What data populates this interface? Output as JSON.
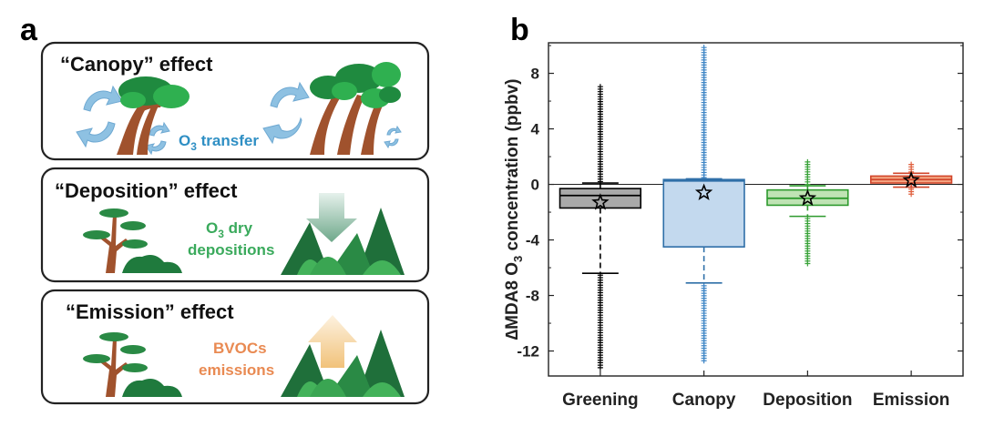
{
  "panel_a": {
    "letter": "a",
    "boxes": [
      {
        "title": "“Canopy” effect",
        "label_main": "O",
        "label_sub": "3",
        "label_rest": " transfer",
        "label_color": "#2f8fc4"
      },
      {
        "title": "“Deposition” effect",
        "label_line1_main": "O",
        "label_line1_sub": "3",
        "label_line1_rest": " dry",
        "label_line2": "depositions",
        "label_color": "#3aaa5c"
      },
      {
        "title": "“Emission” effect",
        "label_line1": "BVOCs",
        "label_line2": "emissions",
        "label_color": "#e98a52"
      }
    ]
  },
  "panel_b": {
    "letter": "b"
  },
  "chart_data": {
    "type": "box",
    "ylabel_prefix": "∆MDA8 O",
    "ylabel_sub": "3",
    "ylabel_suffix": " concentration (ppbv)",
    "ylim": [
      -13.8,
      10.2
    ],
    "yticks": [
      8,
      4,
      0,
      -4,
      -8,
      -12
    ],
    "zero_line": true,
    "categories": [
      "Greening",
      "Canopy",
      "Deposition",
      "Emission"
    ],
    "colors": {
      "Greening": {
        "fill": "#a9a9a9",
        "edge": "#000000",
        "flier": "#000000"
      },
      "Canopy": {
        "fill": "#c3d9ee",
        "edge": "#2f6fa8",
        "flier": "#3f86c6"
      },
      "Deposition": {
        "fill": "#bfe3b4",
        "edge": "#2e9a2e",
        "flier": "#3aa33a"
      },
      "Emission": {
        "fill": "#f4a683",
        "edge": "#d2452a",
        "flier": "#e0603e"
      }
    },
    "boxes": [
      {
        "name": "Greening",
        "q1": -1.7,
        "median": -0.8,
        "q3": -0.3,
        "whisker_low": -6.4,
        "whisker_high": 0.1,
        "mean": -1.3,
        "flier_low": -13.2,
        "flier_high": 7.2
      },
      {
        "name": "Canopy",
        "q1": -4.5,
        "median": 0.25,
        "q3": 0.35,
        "whisker_low": -7.1,
        "whisker_high": 0.4,
        "mean": -0.6,
        "flier_low": -12.7,
        "flier_high": 10.0
      },
      {
        "name": "Deposition",
        "q1": -1.5,
        "median": -1.0,
        "q3": -0.4,
        "whisker_low": -2.3,
        "whisker_high": -0.1,
        "mean": -1.0,
        "flier_low": -5.7,
        "flier_high": 1.7
      },
      {
        "name": "Emission",
        "q1": 0.1,
        "median": 0.35,
        "q3": 0.6,
        "whisker_low": -0.2,
        "whisker_high": 0.8,
        "mean": 0.3,
        "flier_low": -0.7,
        "flier_high": 1.6
      }
    ]
  }
}
